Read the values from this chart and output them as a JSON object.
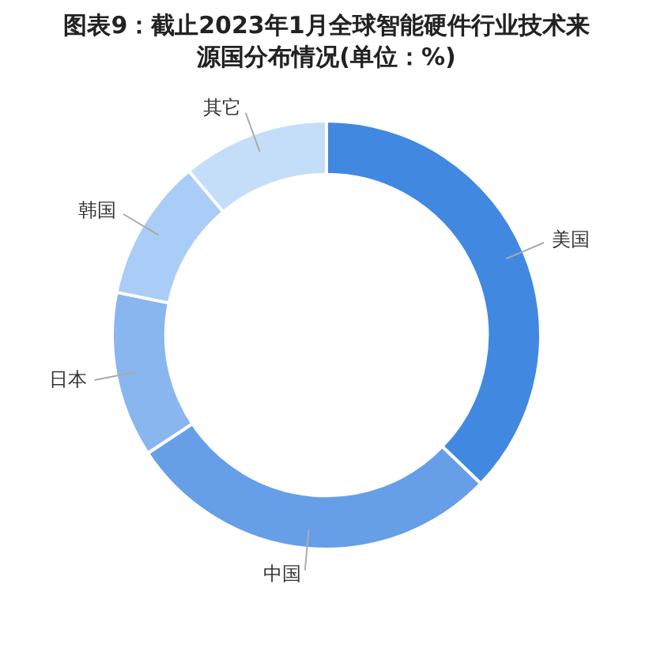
{
  "chart_data": {
    "type": "donut",
    "title": "图表9：截止2023年1月全球智能硬件行业技术来源国分布情况(单位：%)",
    "categories": [
      "美国",
      "中国",
      "日本",
      "韩国",
      "其它"
    ],
    "values": [
      37.2,
      28.5,
      12.5,
      10.7,
      11.1
    ],
    "colors": [
      "#4189e0",
      "#669fe8",
      "#8ab6f0",
      "#aacdf7",
      "#c4defa"
    ],
    "legend": false
  }
}
